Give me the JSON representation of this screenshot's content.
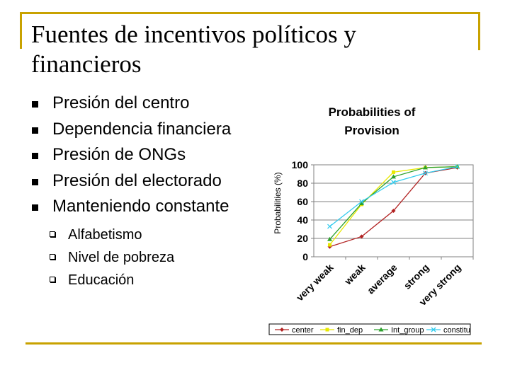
{
  "slide": {
    "title": "Fuentes de incentivos políticos y financieros",
    "bullets": [
      "Presión del centro",
      "Dependencia financiera",
      "Presión de ONGs",
      "Presión del electorado",
      "Manteniendo constante"
    ],
    "sub_bullets": [
      "Alfabetismo",
      "Nivel de pobreza",
      "Educación"
    ],
    "accent_color": "#c8a200"
  },
  "chart_data": {
    "type": "line",
    "title": [
      "Probabilities of",
      "Provision"
    ],
    "ylabel": "Probabilities (%)",
    "xlabel": "",
    "categories": [
      "very weak",
      "weak",
      "average",
      "strong",
      "very strong"
    ],
    "ylim": [
      0,
      100
    ],
    "yticks": [
      0,
      20,
      40,
      60,
      80,
      100
    ],
    "grid": true,
    "legend_position": "bottom",
    "series": [
      {
        "name": "center",
        "color": "#b22222",
        "marker": "diamond",
        "values": [
          11,
          22,
          50,
          91,
          97
        ]
      },
      {
        "name": "fin_dep",
        "color": "#e8e800",
        "marker": "square",
        "values": [
          13,
          57,
          92,
          97,
          98
        ]
      },
      {
        "name": "Int_group",
        "color": "#2ca02c",
        "marker": "triangle",
        "values": [
          19,
          58,
          87,
          97,
          98
        ]
      },
      {
        "name": "constitu",
        "color": "#33ccee",
        "marker": "x",
        "values": [
          33,
          60,
          81,
          91,
          98
        ]
      }
    ]
  }
}
